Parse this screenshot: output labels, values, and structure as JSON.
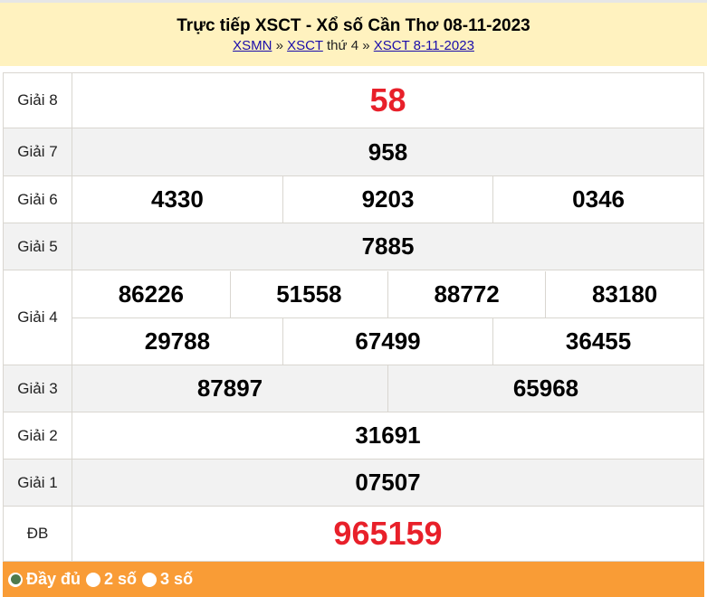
{
  "header": {
    "title": "Trực tiếp XSCT - Xổ số Cần Thơ 08-11-2023",
    "breadcrumb": {
      "link1": "XSMN",
      "sep1": " » ",
      "link2": "XSCT",
      "text": " thứ 4",
      "sep2": " » ",
      "link3": "XSCT 8-11-2023"
    }
  },
  "results": {
    "g8": {
      "label": "Giải 8",
      "numbers": [
        "58"
      ]
    },
    "g7": {
      "label": "Giải 7",
      "numbers": [
        "958"
      ]
    },
    "g6": {
      "label": "Giải 6",
      "numbers": [
        "4330",
        "9203",
        "0346"
      ]
    },
    "g5": {
      "label": "Giải 5",
      "numbers": [
        "7885"
      ]
    },
    "g4": {
      "label": "Giải 4",
      "numbers": [
        "86226",
        "51558",
        "88772",
        "83180",
        "29788",
        "67499",
        "36455"
      ]
    },
    "g3": {
      "label": "Giải 3",
      "numbers": [
        "87897",
        "65968"
      ]
    },
    "g2": {
      "label": "Giải 2",
      "numbers": [
        "31691"
      ]
    },
    "g1": {
      "label": "Giải 1",
      "numbers": [
        "07507"
      ]
    },
    "db": {
      "label": "ĐB",
      "numbers": [
        "965159"
      ]
    }
  },
  "footer": {
    "options": [
      {
        "label": "Đầy đủ",
        "selected": true
      },
      {
        "label": "2 số",
        "selected": false
      },
      {
        "label": "3 số",
        "selected": false
      }
    ]
  },
  "colors": {
    "header_bg": "#fff2bf",
    "highlight_red": "#e8202a",
    "footer_bg": "#f99c36",
    "radio_selected": "#4f7a4d"
  }
}
